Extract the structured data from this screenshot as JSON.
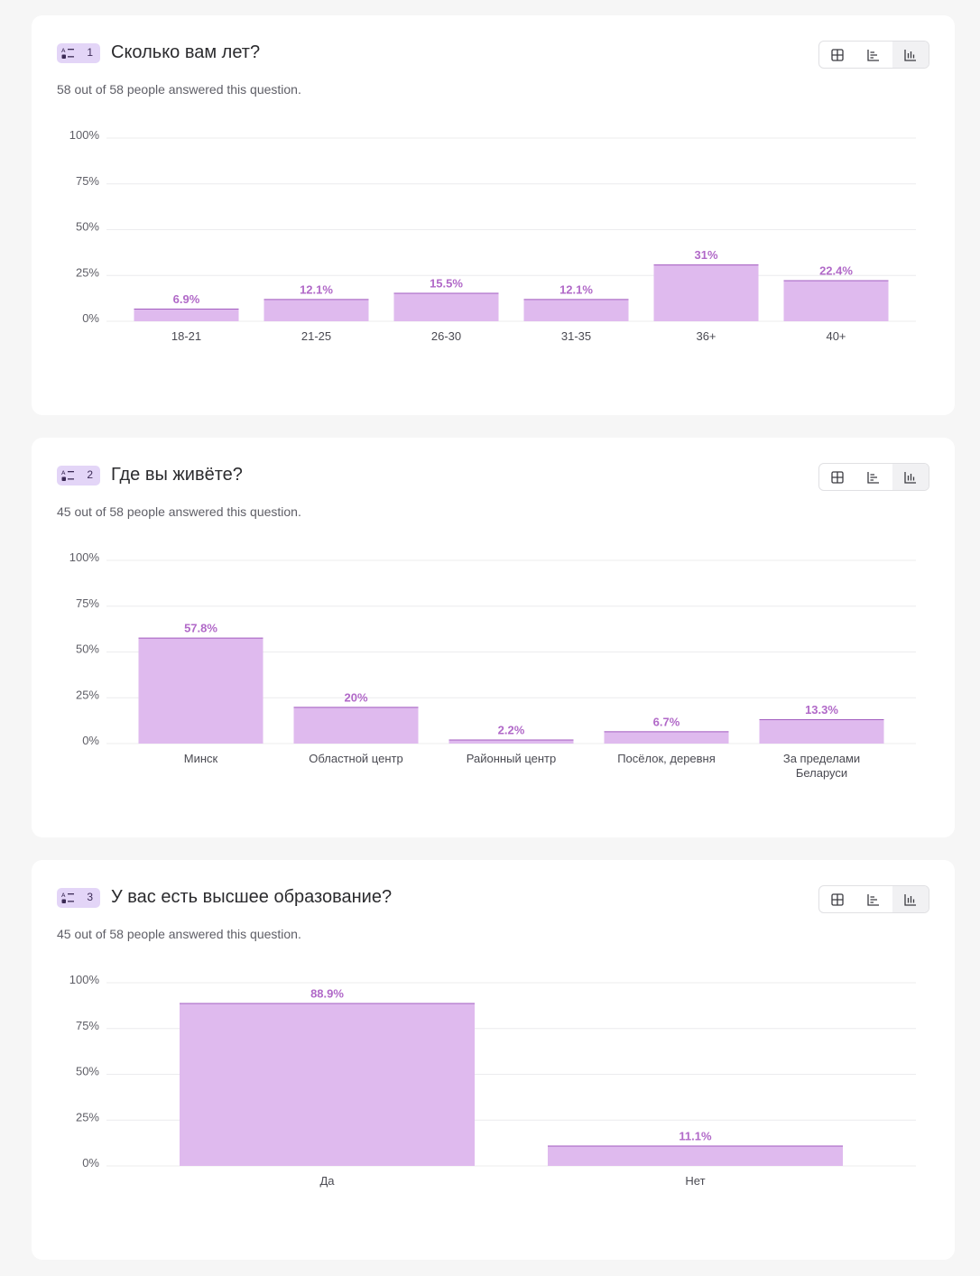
{
  "colors": {
    "bar_fill": "#dfbaee",
    "bar_stroke": "#a35ec0",
    "value_label": "#b169c8",
    "badge_bg": "#e3d5f7",
    "grid": "#ececee"
  },
  "view_switch": {
    "icons": [
      "table-icon",
      "horizontal-bar-icon",
      "vertical-bar-icon"
    ],
    "active": "vertical-bar-icon"
  },
  "questions": [
    {
      "number": "1",
      "title": "Сколько вам лет?",
      "answered": "58 out of 58 people answered this question."
    },
    {
      "number": "2",
      "title": "Где вы живёте?",
      "answered": "45 out of 58 people answered this question."
    },
    {
      "number": "3",
      "title": "У вас есть высшее образование?",
      "answered": "45 out of 58 people answered this question."
    }
  ],
  "chart_data": [
    {
      "type": "bar",
      "categories": [
        "18-21",
        "21-25",
        "26-30",
        "31-35",
        "36+",
        "40+"
      ],
      "values": [
        6.9,
        12.1,
        15.5,
        12.1,
        31,
        22.4
      ],
      "value_labels": [
        "6.9%",
        "12.1%",
        "15.5%",
        "12.1%",
        "31%",
        "22.4%"
      ],
      "yticks": [
        "0%",
        "25%",
        "50%",
        "75%",
        "100%"
      ],
      "ylim": [
        0,
        100
      ],
      "grid": true
    },
    {
      "type": "bar",
      "categories": [
        "Минск",
        "Областной центр",
        "Районный центр",
        "Посёлок, деревня",
        "За пределами Беларуси"
      ],
      "category_lines": [
        [
          "Минск"
        ],
        [
          "Областной центр"
        ],
        [
          "Районный центр"
        ],
        [
          "Посёлок, деревня"
        ],
        [
          "За пределами",
          "Беларуси"
        ]
      ],
      "values": [
        57.8,
        20,
        2.2,
        6.7,
        13.3
      ],
      "value_labels": [
        "57.8%",
        "20%",
        "2.2%",
        "6.7%",
        "13.3%"
      ],
      "yticks": [
        "0%",
        "25%",
        "50%",
        "75%",
        "100%"
      ],
      "ylim": [
        0,
        100
      ],
      "grid": true
    },
    {
      "type": "bar",
      "categories": [
        "Да",
        "Нет"
      ],
      "values": [
        88.9,
        11.1
      ],
      "value_labels": [
        "88.9%",
        "11.1%"
      ],
      "yticks": [
        "0%",
        "25%",
        "50%",
        "75%",
        "100%"
      ],
      "ylim": [
        0,
        100
      ],
      "grid": true
    }
  ]
}
